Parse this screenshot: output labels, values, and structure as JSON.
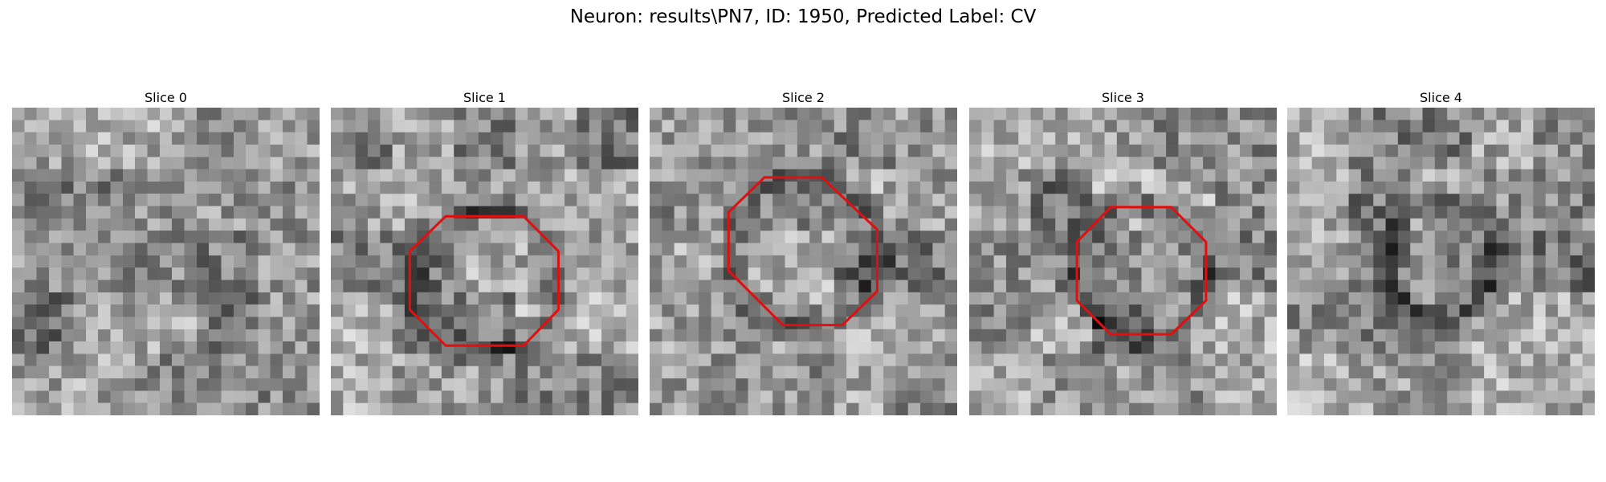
{
  "title": "Neuron: results\\PN7, ID: 1950, Predicted Label: CV",
  "panels": [
    {
      "title": "Slice 0"
    },
    {
      "title": "Slice 1"
    },
    {
      "title": "Slice 2"
    },
    {
      "title": "Slice 3"
    },
    {
      "title": "Slice 4"
    }
  ]
}
